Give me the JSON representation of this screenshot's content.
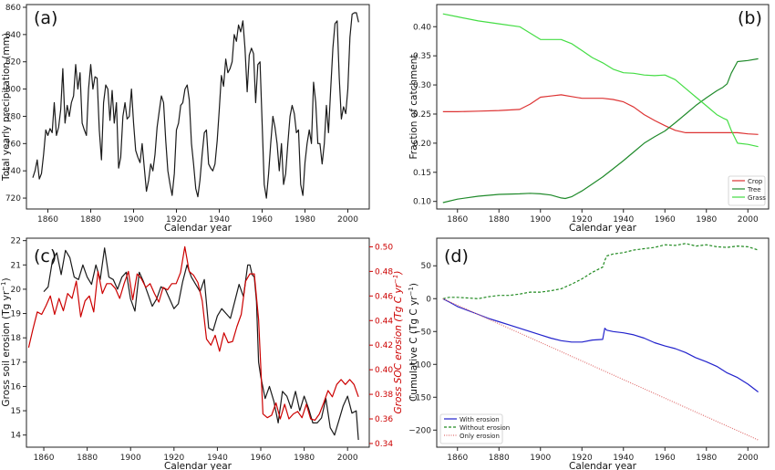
{
  "chart_data": [
    {
      "panel": "(a)",
      "type": "line",
      "xlabel": "Calendar year",
      "ylabel": "Total yearly precipitation (mm)",
      "xlim": [
        1850,
        2010
      ],
      "ylim": [
        712,
        862
      ],
      "xticks": [
        1860,
        1880,
        1900,
        1920,
        1940,
        1960,
        1980,
        2000
      ],
      "yticks": [
        720,
        740,
        760,
        780,
        800,
        820,
        840,
        860
      ],
      "grid": false,
      "color": "#1a1a1a",
      "x": [
        1853,
        1854,
        1855,
        1856,
        1857,
        1858,
        1859,
        1860,
        1861,
        1862,
        1863,
        1864,
        1865,
        1866,
        1867,
        1868,
        1869,
        1870,
        1871,
        1872,
        1873,
        1874,
        1875,
        1876,
        1877,
        1878,
        1879,
        1880,
        1881,
        1882,
        1883,
        1884,
        1885,
        1886,
        1887,
        1888,
        1889,
        1890,
        1891,
        1892,
        1893,
        1894,
        1895,
        1896,
        1897,
        1898,
        1899,
        1900,
        1901,
        1902,
        1903,
        1904,
        1905,
        1906,
        1907,
        1908,
        1909,
        1910,
        1911,
        1912,
        1913,
        1914,
        1915,
        1916,
        1917,
        1918,
        1919,
        1920,
        1921,
        1922,
        1923,
        1924,
        1925,
        1926,
        1927,
        1928,
        1929,
        1930,
        1931,
        1932,
        1933,
        1934,
        1935,
        1936,
        1937,
        1938,
        1939,
        1940,
        1941,
        1942,
        1943,
        1944,
        1945,
        1946,
        1947,
        1948,
        1949,
        1950,
        1951,
        1952,
        1953,
        1954,
        1955,
        1956,
        1957,
        1958,
        1959,
        1960,
        1961,
        1962,
        1963,
        1964,
        1965,
        1966,
        1967,
        1968,
        1969,
        1970,
        1971,
        1972,
        1973,
        1974,
        1975,
        1976,
        1977,
        1978,
        1979,
        1980,
        1981,
        1982,
        1983,
        1984,
        1985,
        1986,
        1987,
        1988,
        1989,
        1990,
        1991,
        1992,
        1993,
        1994,
        1995,
        1996,
        1997,
        1998,
        1999,
        2000,
        2001,
        2002,
        2003,
        2004,
        2005
      ],
      "y": [
        735,
        740,
        748,
        734,
        738,
        752,
        770,
        766,
        771,
        768,
        790,
        766,
        772,
        785,
        815,
        775,
        788,
        780,
        790,
        795,
        818,
        800,
        812,
        775,
        770,
        766,
        800,
        818,
        800,
        809,
        808,
        770,
        748,
        790,
        803,
        800,
        777,
        799,
        775,
        790,
        742,
        750,
        780,
        790,
        778,
        780,
        800,
        775,
        755,
        750,
        746,
        760,
        742,
        725,
        733,
        745,
        740,
        752,
        772,
        784,
        795,
        790,
        762,
        740,
        730,
        722,
        738,
        770,
        775,
        788,
        790,
        800,
        803,
        792,
        760,
        745,
        727,
        721,
        733,
        752,
        768,
        770,
        745,
        742,
        740,
        745,
        762,
        785,
        810,
        802,
        822,
        812,
        815,
        820,
        840,
        835,
        847,
        842,
        850,
        830,
        798,
        825,
        830,
        826,
        790,
        818,
        820,
        775,
        730,
        720,
        738,
        760,
        780,
        772,
        760,
        740,
        760,
        730,
        738,
        760,
        780,
        788,
        782,
        768,
        770,
        730,
        722,
        746,
        760,
        770,
        760,
        805,
        790,
        760,
        760,
        745,
        760,
        788,
        768,
        800,
        830,
        848,
        850,
        808,
        778,
        787,
        782,
        800,
        838,
        855,
        856,
        856,
        849
      ]
    },
    {
      "panel": "(b)",
      "type": "line",
      "xlabel": "Calendar year",
      "ylabel": "Fraction of catchment",
      "xlim": [
        1850,
        2010
      ],
      "ylim": [
        0.087,
        0.438
      ],
      "xticks": [
        1860,
        1880,
        1900,
        1920,
        1940,
        1960,
        1980,
        2000
      ],
      "yticks": [
        0.1,
        0.15,
        0.2,
        0.25,
        0.3,
        0.35,
        0.4
      ],
      "ytick_labels": [
        "0.10",
        "0.15",
        "0.20",
        "0.25",
        "0.30",
        "0.35",
        "0.40"
      ],
      "grid": false,
      "legend_position": "bottom-right",
      "series": [
        {
          "name": "Crop",
          "color": "#dd3333",
          "x": [
            1853,
            1860,
            1870,
            1880,
            1890,
            1895,
            1900,
            1905,
            1910,
            1915,
            1920,
            1925,
            1930,
            1935,
            1940,
            1945,
            1950,
            1955,
            1960,
            1965,
            1970,
            1975,
            1980,
            1985,
            1990,
            1995,
            2000,
            2005
          ],
          "y": [
            0.254,
            0.254,
            0.255,
            0.256,
            0.258,
            0.267,
            0.279,
            0.281,
            0.283,
            0.28,
            0.277,
            0.277,
            0.277,
            0.275,
            0.271,
            0.262,
            0.249,
            0.239,
            0.23,
            0.222,
            0.218,
            0.218,
            0.218,
            0.218,
            0.218,
            0.218,
            0.216,
            0.215
          ]
        },
        {
          "name": "Tree",
          "color": "#1f8a2a",
          "x": [
            1853,
            1860,
            1870,
            1880,
            1890,
            1895,
            1900,
            1905,
            1910,
            1912,
            1915,
            1920,
            1925,
            1930,
            1935,
            1940,
            1945,
            1950,
            1955,
            1960,
            1965,
            1970,
            1975,
            1980,
            1985,
            1988,
            1990,
            1992,
            1995,
            2000,
            2005
          ],
          "y": [
            0.098,
            0.104,
            0.109,
            0.112,
            0.113,
            0.114,
            0.113,
            0.111,
            0.106,
            0.105,
            0.108,
            0.118,
            0.13,
            0.142,
            0.156,
            0.17,
            0.185,
            0.2,
            0.211,
            0.221,
            0.235,
            0.25,
            0.265,
            0.278,
            0.29,
            0.296,
            0.302,
            0.32,
            0.34,
            0.342,
            0.345
          ]
        },
        {
          "name": "Grass",
          "color": "#44dd44",
          "x": [
            1853,
            1860,
            1870,
            1880,
            1890,
            1895,
            1900,
            1905,
            1910,
            1915,
            1920,
            1925,
            1930,
            1935,
            1940,
            1945,
            1950,
            1955,
            1960,
            1965,
            1970,
            1975,
            1980,
            1985,
            1988,
            1990,
            1992,
            1995,
            2000,
            2005
          ],
          "y": [
            0.422,
            0.417,
            0.41,
            0.405,
            0.4,
            0.389,
            0.378,
            0.378,
            0.378,
            0.371,
            0.359,
            0.347,
            0.338,
            0.327,
            0.321,
            0.32,
            0.317,
            0.316,
            0.317,
            0.309,
            0.294,
            0.279,
            0.264,
            0.249,
            0.243,
            0.24,
            0.222,
            0.2,
            0.198,
            0.194
          ]
        }
      ]
    },
    {
      "panel": "(c)",
      "type": "line",
      "xlabel": "Calendar year",
      "ylabel": "Gross soil erosion (Tg yr⁻¹)",
      "ylabel_right": "Gross SOC erosion (Tg C yr⁻¹)",
      "xlim": [
        1852,
        2010
      ],
      "ylim": [
        13.5,
        22.1
      ],
      "ylim_right": [
        0.337,
        0.507
      ],
      "xticks": [
        1860,
        1880,
        1900,
        1920,
        1940,
        1960,
        1980,
        2000
      ],
      "yticks": [
        14,
        15,
        16,
        17,
        18,
        19,
        20,
        21,
        22
      ],
      "yticks_right": [
        0.34,
        0.36,
        0.38,
        0.4,
        0.42,
        0.44,
        0.46,
        0.48,
        0.5
      ],
      "ytick_labels_right": [
        "0.34",
        "0.36",
        "0.38",
        "0.40",
        "0.42",
        "0.44",
        "0.46",
        "0.48",
        "0.50"
      ],
      "right_axis_color": "#cc0000",
      "grid": false,
      "series": [
        {
          "name": "",
          "axis": "left",
          "color": "#1a1a1a",
          "x": [
            1860,
            1862,
            1864,
            1866,
            1868,
            1870,
            1872,
            1874,
            1876,
            1878,
            1880,
            1882,
            1884,
            1886,
            1888,
            1890,
            1892,
            1894,
            1896,
            1898,
            1900,
            1902,
            1904,
            1906,
            1908,
            1910,
            1912,
            1914,
            1916,
            1918,
            1920,
            1922,
            1924,
            1926,
            1928,
            1930,
            1932,
            1934,
            1936,
            1938,
            1940,
            1942,
            1944,
            1946,
            1948,
            1950,
            1952,
            1954,
            1955,
            1956,
            1957,
            1958,
            1959,
            1960,
            1962,
            1964,
            1966,
            1968,
            1970,
            1972,
            1974,
            1976,
            1978,
            1980,
            1982,
            1984,
            1986,
            1988,
            1990,
            1992,
            1994,
            1996,
            1998,
            2000,
            2002,
            2004,
            2005
          ],
          "y": [
            19.9,
            20.1,
            21.2,
            21.5,
            20.6,
            21.6,
            21.3,
            20.5,
            20.4,
            21.0,
            20.5,
            20.2,
            21.0,
            20.4,
            21.7,
            20.5,
            20.4,
            20.0,
            20.5,
            20.7,
            19.6,
            19.1,
            20.7,
            20.3,
            19.8,
            19.3,
            19.6,
            20.1,
            20.0,
            19.6,
            19.2,
            19.4,
            20.3,
            21.0,
            20.5,
            20.2,
            19.9,
            20.4,
            18.4,
            18.3,
            18.9,
            19.2,
            19.0,
            18.8,
            19.5,
            20.2,
            19.7,
            21.0,
            21.0,
            20.6,
            20.5,
            19.5,
            17.0,
            16.4,
            15.5,
            16.0,
            15.4,
            14.5,
            15.8,
            15.6,
            15.1,
            15.8,
            15.0,
            15.6,
            15.1,
            14.5,
            14.5,
            14.7,
            15.5,
            14.3,
            14.0,
            14.6,
            15.2,
            15.6,
            14.9,
            15.0,
            13.8
          ]
        },
        {
          "name": "",
          "axis": "right",
          "color": "#cc0000",
          "x": [
            1853,
            1855,
            1857,
            1859,
            1861,
            1863,
            1865,
            1867,
            1869,
            1871,
            1873,
            1875,
            1877,
            1879,
            1881,
            1883,
            1885,
            1887,
            1889,
            1891,
            1893,
            1895,
            1897,
            1899,
            1901,
            1903,
            1905,
            1907,
            1909,
            1911,
            1913,
            1915,
            1917,
            1919,
            1921,
            1923,
            1925,
            1927,
            1929,
            1931,
            1933,
            1935,
            1937,
            1939,
            1941,
            1943,
            1945,
            1947,
            1949,
            1951,
            1953,
            1955,
            1957,
            1959,
            1961,
            1963,
            1965,
            1967,
            1969,
            1971,
            1973,
            1975,
            1977,
            1979,
            1981,
            1983,
            1985,
            1987,
            1989,
            1991,
            1993,
            1995,
            1997,
            1999,
            2001,
            2003,
            2005
          ],
          "y": [
            0.418,
            0.433,
            0.447,
            0.445,
            0.452,
            0.46,
            0.445,
            0.458,
            0.448,
            0.462,
            0.458,
            0.472,
            0.443,
            0.456,
            0.46,
            0.447,
            0.48,
            0.462,
            0.47,
            0.47,
            0.466,
            0.458,
            0.47,
            0.48,
            0.457,
            0.478,
            0.474,
            0.467,
            0.47,
            0.462,
            0.455,
            0.467,
            0.465,
            0.47,
            0.47,
            0.479,
            0.5,
            0.48,
            0.477,
            0.471,
            0.456,
            0.425,
            0.42,
            0.428,
            0.415,
            0.43,
            0.422,
            0.423,
            0.435,
            0.445,
            0.472,
            0.478,
            0.478,
            0.441,
            0.364,
            0.361,
            0.363,
            0.373,
            0.36,
            0.372,
            0.36,
            0.364,
            0.366,
            0.361,
            0.372,
            0.36,
            0.359,
            0.364,
            0.373,
            0.383,
            0.378,
            0.388,
            0.392,
            0.388,
            0.392,
            0.388,
            0.378
          ]
        }
      ]
    },
    {
      "panel": "(d)",
      "type": "line",
      "xlabel": "Calendar year",
      "ylabel": "Cumulative C (Tg C yr⁻¹)",
      "xlim": [
        1850,
        2010
      ],
      "ylim": [
        -226,
        92
      ],
      "xticks": [
        1860,
        1880,
        1900,
        1920,
        1940,
        1960,
        1980,
        2000
      ],
      "yticks": [
        -200,
        -150,
        -100,
        -50,
        0,
        50
      ],
      "grid": false,
      "legend_position": "bottom-left",
      "series": [
        {
          "name": "With erosion",
          "color": "#2222cc",
          "style": "solid",
          "x": [
            1853,
            1856,
            1860,
            1865,
            1870,
            1875,
            1880,
            1885,
            1890,
            1895,
            1900,
            1905,
            1910,
            1915,
            1920,
            1925,
            1930,
            1931,
            1932,
            1935,
            1940,
            1945,
            1950,
            1955,
            1960,
            1965,
            1970,
            1975,
            1980,
            1985,
            1990,
            1995,
            2000,
            2005
          ],
          "y": [
            0,
            -5,
            -12,
            -18,
            -24,
            -30,
            -35,
            -40,
            -45,
            -50,
            -55,
            -60,
            -64,
            -66,
            -66,
            -63,
            -62,
            -45,
            -48,
            -50,
            -52,
            -55,
            -60,
            -67,
            -72,
            -76,
            -82,
            -90,
            -96,
            -103,
            -113,
            -120,
            -130,
            -142
          ]
        },
        {
          "name": "Without erosion",
          "color": "#228b22",
          "style": "dashed",
          "x": [
            1853,
            1856,
            1860,
            1865,
            1870,
            1875,
            1880,
            1885,
            1890,
            1895,
            1900,
            1905,
            1910,
            1915,
            1920,
            1925,
            1930,
            1931,
            1932,
            1935,
            1940,
            1945,
            1950,
            1955,
            1960,
            1965,
            1970,
            1975,
            1980,
            1985,
            1990,
            1995,
            2000,
            2005
          ],
          "y": [
            0,
            2,
            2,
            1,
            0,
            3,
            5,
            5,
            7,
            10,
            10,
            12,
            15,
            22,
            30,
            40,
            48,
            58,
            65,
            68,
            70,
            74,
            76,
            78,
            82,
            81,
            84,
            80,
            82,
            79,
            78,
            80,
            79,
            74
          ]
        },
        {
          "name": "Only erosion",
          "color": "#e07070",
          "style": "dotted",
          "x": [
            1853,
            2005
          ],
          "y": [
            0,
            -215
          ]
        }
      ]
    }
  ]
}
